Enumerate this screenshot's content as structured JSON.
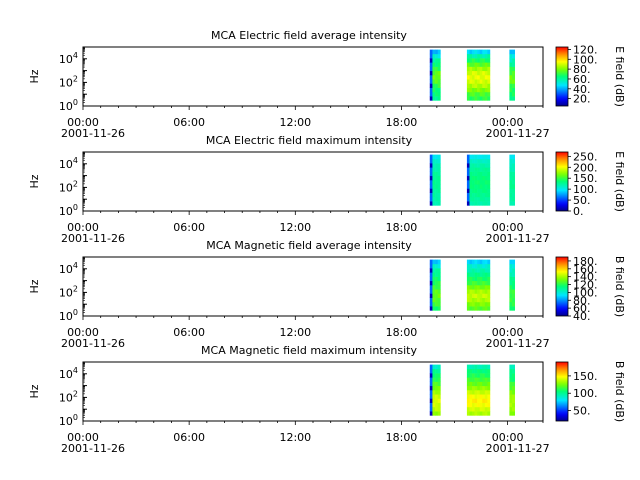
{
  "chart_data": [
    {
      "type": "heatmap",
      "title": "MCA  Electric field average intensity",
      "ylabel": "Hz",
      "yscale": "log",
      "ylim": [
        1,
        100000
      ],
      "yticks": [
        {
          "label": "10",
          "exp": "0",
          "value": 1
        },
        {
          "label": "10",
          "exp": "2",
          "value": 100
        },
        {
          "label": "10",
          "exp": "4",
          "value": 10000
        }
      ],
      "xlim_hours": [
        0,
        26
      ],
      "xticks": [
        {
          "hour": 0,
          "time": "00:00",
          "date": "2001-11-26"
        },
        {
          "hour": 6,
          "time": "06:00",
          "date": ""
        },
        {
          "hour": 12,
          "time": "12:00",
          "date": ""
        },
        {
          "hour": 18,
          "time": "18:00",
          "date": ""
        },
        {
          "hour": 24,
          "time": "00:00",
          "date": "2001-11-27"
        }
      ],
      "colorbar": {
        "label": "E field (dB)",
        "range": [
          5,
          125
        ],
        "ticks": [
          "120.",
          "100.",
          "80.",
          "60.",
          "40.",
          "20."
        ],
        "tick_values": [
          120,
          100,
          80,
          60,
          40,
          20
        ]
      },
      "segments": [
        {
          "start_h": 19.6,
          "end_h": 20.2,
          "flo": 3,
          "fhi": 60000,
          "base": [
            62,
            64,
            66,
            70,
            74,
            78,
            76,
            70,
            66,
            60,
            52,
            42
          ],
          "edge": true
        },
        {
          "start_h": 21.7,
          "end_h": 23.0,
          "flo": 3,
          "fhi": 60000,
          "base": [
            70,
            74,
            80,
            86,
            90,
            92,
            90,
            84,
            76,
            68,
            58,
            46
          ],
          "edge": false
        },
        {
          "start_h": 24.1,
          "end_h": 24.4,
          "flo": 3,
          "fhi": 60000,
          "base": [
            64,
            66,
            68,
            72,
            76,
            78,
            74,
            68,
            62,
            56,
            50,
            44
          ],
          "edge": false
        }
      ]
    },
    {
      "type": "heatmap",
      "title": "MCA  Electric field maximum intensity",
      "ylabel": "Hz",
      "yscale": "log",
      "ylim": [
        1,
        100000
      ],
      "yticks": [
        {
          "label": "10",
          "exp": "0",
          "value": 1
        },
        {
          "label": "10",
          "exp": "2",
          "value": 100
        },
        {
          "label": "10",
          "exp": "4",
          "value": 10000
        }
      ],
      "xlim_hours": [
        0,
        26
      ],
      "xticks": [
        {
          "hour": 0,
          "time": "00:00",
          "date": "2001-11-26"
        },
        {
          "hour": 6,
          "time": "06:00",
          "date": ""
        },
        {
          "hour": 12,
          "time": "12:00",
          "date": ""
        },
        {
          "hour": 18,
          "time": "18:00",
          "date": ""
        },
        {
          "hour": 24,
          "time": "00:00",
          "date": "2001-11-27"
        }
      ],
      "colorbar": {
        "label": "E field (dB)",
        "range": [
          0,
          270
        ],
        "ticks": [
          "250.",
          "200.",
          "150.",
          "100.",
          "50.",
          "0."
        ],
        "tick_values": [
          250,
          200,
          150,
          100,
          50,
          0
        ]
      },
      "segments": [
        {
          "start_h": 19.6,
          "end_h": 20.2,
          "flo": 3,
          "fhi": 60000,
          "base": [
            118,
            120,
            122,
            124,
            126,
            128,
            126,
            124,
            120,
            116,
            110,
            100
          ],
          "edge": true
        },
        {
          "start_h": 21.7,
          "end_h": 23.0,
          "flo": 3,
          "fhi": 60000,
          "base": [
            120,
            124,
            128,
            132,
            134,
            136,
            134,
            130,
            126,
            120,
            112,
            100
          ],
          "edge": true
        },
        {
          "start_h": 24.1,
          "end_h": 24.4,
          "flo": 3,
          "fhi": 60000,
          "base": [
            120,
            122,
            124,
            126,
            128,
            128,
            126,
            122,
            118,
            114,
            108,
            100
          ],
          "edge": false
        }
      ]
    },
    {
      "type": "heatmap",
      "title": "MCA  Magnetic field average intensity",
      "ylabel": "Hz",
      "yscale": "log",
      "ylim": [
        1,
        100000
      ],
      "yticks": [
        {
          "label": "10",
          "exp": "0",
          "value": 1
        },
        {
          "label": "10",
          "exp": "2",
          "value": 100
        },
        {
          "label": "10",
          "exp": "4",
          "value": 10000
        }
      ],
      "xlim_hours": [
        0,
        26
      ],
      "xticks": [
        {
          "hour": 0,
          "time": "00:00",
          "date": "2001-11-26"
        },
        {
          "hour": 6,
          "time": "06:00",
          "date": ""
        },
        {
          "hour": 12,
          "time": "12:00",
          "date": ""
        },
        {
          "hour": 18,
          "time": "18:00",
          "date": ""
        },
        {
          "hour": 24,
          "time": "00:00",
          "date": "2001-11-27"
        }
      ],
      "colorbar": {
        "label": "B field (dB)",
        "range": [
          40,
          190
        ],
        "ticks": [
          "180.",
          "160.",
          "140.",
          "120.",
          "100.",
          "80.",
          "60.",
          "40."
        ],
        "tick_values": [
          180,
          160,
          140,
          120,
          100,
          80,
          60,
          40
        ]
      },
      "segments": [
        {
          "start_h": 19.6,
          "end_h": 20.2,
          "flo": 3,
          "fhi": 60000,
          "base": [
            118,
            124,
            128,
            130,
            128,
            124,
            120,
            116,
            112,
            108,
            100,
            88
          ],
          "edge": true
        },
        {
          "start_h": 21.7,
          "end_h": 23.0,
          "flo": 3,
          "fhi": 60000,
          "base": [
            128,
            134,
            140,
            144,
            140,
            132,
            124,
            118,
            112,
            106,
            100,
            90
          ],
          "edge": false
        },
        {
          "start_h": 24.1,
          "end_h": 24.4,
          "flo": 3,
          "fhi": 60000,
          "base": [
            118,
            120,
            122,
            124,
            122,
            118,
            114,
            110,
            106,
            102,
            98,
            92
          ],
          "edge": false
        }
      ]
    },
    {
      "type": "heatmap",
      "title": "MCA  Magnetic field maximum intensity",
      "ylabel": "Hz",
      "yscale": "log",
      "ylim": [
        1,
        100000
      ],
      "yticks": [
        {
          "label": "10",
          "exp": "0",
          "value": 1
        },
        {
          "label": "10",
          "exp": "2",
          "value": 100
        },
        {
          "label": "10",
          "exp": "4",
          "value": 10000
        }
      ],
      "xlim_hours": [
        0,
        26
      ],
      "xticks": [
        {
          "hour": 0,
          "time": "00:00",
          "date": "2001-11-26"
        },
        {
          "hour": 6,
          "time": "06:00",
          "date": ""
        },
        {
          "hour": 12,
          "time": "12:00",
          "date": ""
        },
        {
          "hour": 18,
          "time": "18:00",
          "date": ""
        },
        {
          "hour": 24,
          "time": "00:00",
          "date": "2001-11-27"
        }
      ],
      "colorbar": {
        "label": "B field (dB)",
        "range": [
          20,
          190
        ],
        "ticks": [
          "150.",
          "100.",
          "50."
        ],
        "tick_values": [
          150,
          100,
          50
        ]
      },
      "segments": [
        {
          "start_h": 19.6,
          "end_h": 20.2,
          "flo": 3,
          "fhi": 60000,
          "base": [
            130,
            136,
            140,
            142,
            138,
            132,
            124,
            118,
            112,
            106,
            100,
            90
          ],
          "edge": true
        },
        {
          "start_h": 21.7,
          "end_h": 23.0,
          "flo": 3,
          "fhi": 60000,
          "base": [
            134,
            140,
            146,
            150,
            146,
            138,
            130,
            122,
            116,
            110,
            104,
            94
          ],
          "edge": false
        },
        {
          "start_h": 24.1,
          "end_h": 24.4,
          "flo": 3,
          "fhi": 60000,
          "base": [
            128,
            130,
            132,
            134,
            130,
            126,
            120,
            114,
            108,
            104,
            100,
            94
          ],
          "edge": false
        }
      ]
    }
  ]
}
